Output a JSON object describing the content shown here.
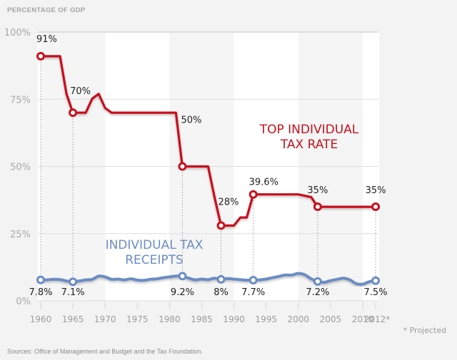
{
  "chart_data": {
    "type": "line",
    "title": "",
    "ylabel": "PERCENTAGE OF GDP",
    "xlabel": "",
    "ylim": [
      0,
      100
    ],
    "xlim": [
      1960,
      2012
    ],
    "y_ticks": [
      {
        "value": 0,
        "label": "0%"
      },
      {
        "value": 25,
        "label": "25%"
      },
      {
        "value": 50,
        "label": "50%"
      },
      {
        "value": 75,
        "label": "75%"
      },
      {
        "value": 100,
        "label": "100%"
      }
    ],
    "x_ticks": [
      {
        "value": 1960,
        "label": "1960"
      },
      {
        "value": 1965,
        "label": "1965"
      },
      {
        "value": 1970,
        "label": "1970"
      },
      {
        "value": 1975,
        "label": "1975"
      },
      {
        "value": 1980,
        "label": "1980"
      },
      {
        "value": 1985,
        "label": "1985"
      },
      {
        "value": 1990,
        "label": "1990"
      },
      {
        "value": 1995,
        "label": "1995"
      },
      {
        "value": 2000,
        "label": "2000"
      },
      {
        "value": 2005,
        "label": "2005"
      },
      {
        "value": 2010,
        "label": "2010"
      },
      {
        "value": 2012,
        "label": "2012*"
      }
    ],
    "grid": true,
    "legend": "inline labels",
    "series": [
      {
        "name": "TOP INDIVIDUAL TAX RATE",
        "label_lines": [
          "TOP INDIVIDUAL",
          "TAX RATE"
        ],
        "color": "#c8101d",
        "points": [
          [
            1960,
            91
          ],
          [
            1963,
            91
          ],
          [
            1964,
            77
          ],
          [
            1965,
            70
          ],
          [
            1967,
            70
          ],
          [
            1968,
            75.25
          ],
          [
            1969,
            77
          ],
          [
            1970,
            71.75
          ],
          [
            1971,
            70
          ],
          [
            1981,
            70
          ],
          [
            1982,
            50
          ],
          [
            1986,
            50
          ],
          [
            1987,
            38.5
          ],
          [
            1988,
            28
          ],
          [
            1990,
            28
          ],
          [
            1991,
            31
          ],
          [
            1992,
            31
          ],
          [
            1993,
            39.6
          ],
          [
            2000,
            39.6
          ],
          [
            2001,
            39.1
          ],
          [
            2002,
            38.6
          ],
          [
            2003,
            35
          ],
          [
            2012,
            35
          ]
        ],
        "highlights": [
          {
            "x": 1960,
            "y": 91,
            "label": "91%"
          },
          {
            "x": 1965,
            "y": 70,
            "label": "70%"
          },
          {
            "x": 1982,
            "y": 50,
            "label": "50%"
          },
          {
            "x": 1988,
            "y": 28,
            "label": "28%"
          },
          {
            "x": 1993,
            "y": 39.6,
            "label": "39.6%"
          },
          {
            "x": 2003,
            "y": 35,
            "label": "35%"
          },
          {
            "x": 2012,
            "y": 35,
            "label": "35%"
          }
        ]
      },
      {
        "name": "INDIVIDUAL TAX RECEIPTS",
        "label_lines": [
          "INDIVIDUAL TAX",
          "RECEIPTS"
        ],
        "color": "#6b8cc4",
        "points": [
          [
            1960,
            7.8
          ],
          [
            1961,
            7.8
          ],
          [
            1962,
            8.0
          ],
          [
            1963,
            7.9
          ],
          [
            1964,
            7.4
          ],
          [
            1965,
            7.1
          ],
          [
            1966,
            7.4
          ],
          [
            1967,
            7.8
          ],
          [
            1968,
            8.0
          ],
          [
            1969,
            9.2
          ],
          [
            1970,
            8.9
          ],
          [
            1971,
            8.0
          ],
          [
            1972,
            8.1
          ],
          [
            1973,
            7.8
          ],
          [
            1974,
            8.2
          ],
          [
            1975,
            7.7
          ],
          [
            1976,
            7.6
          ],
          [
            1977,
            8.0
          ],
          [
            1978,
            8.2
          ],
          [
            1979,
            8.6
          ],
          [
            1980,
            8.9
          ],
          [
            1981,
            9.2
          ],
          [
            1982,
            9.2
          ],
          [
            1983,
            8.4
          ],
          [
            1984,
            7.8
          ],
          [
            1985,
            8.1
          ],
          [
            1986,
            7.9
          ],
          [
            1987,
            8.4
          ],
          [
            1988,
            8.0
          ],
          [
            1989,
            8.3
          ],
          [
            1990,
            8.1
          ],
          [
            1991,
            7.9
          ],
          [
            1992,
            7.7
          ],
          [
            1993,
            7.7
          ],
          [
            1994,
            7.8
          ],
          [
            1995,
            8.1
          ],
          [
            1996,
            8.6
          ],
          [
            1997,
            9.1
          ],
          [
            1998,
            9.6
          ],
          [
            1999,
            9.6
          ],
          [
            2000,
            10.2
          ],
          [
            2001,
            9.7
          ],
          [
            2002,
            8.2
          ],
          [
            2003,
            7.2
          ],
          [
            2004,
            6.9
          ],
          [
            2005,
            7.5
          ],
          [
            2006,
            8.0
          ],
          [
            2007,
            8.4
          ],
          [
            2008,
            7.8
          ],
          [
            2009,
            6.4
          ],
          [
            2010,
            6.2
          ],
          [
            2011,
            7.1
          ],
          [
            2012,
            7.5
          ]
        ],
        "highlights": [
          {
            "x": 1960,
            "y": 7.8,
            "label": "7.8%"
          },
          {
            "x": 1965,
            "y": 7.1,
            "label": "7.1%"
          },
          {
            "x": 1982,
            "y": 9.2,
            "label": "9.2%"
          },
          {
            "x": 1988,
            "y": 8,
            "label": "8%"
          },
          {
            "x": 1993,
            "y": 7.7,
            "label": "7.7%"
          },
          {
            "x": 2003,
            "y": 7.2,
            "label": "7.2%"
          },
          {
            "x": 2012,
            "y": 7.5,
            "label": "7.5%"
          }
        ]
      }
    ],
    "annotations": [
      "* Projected"
    ],
    "source": "Sources: Office of Management and Budget and the Tax Foundation."
  }
}
